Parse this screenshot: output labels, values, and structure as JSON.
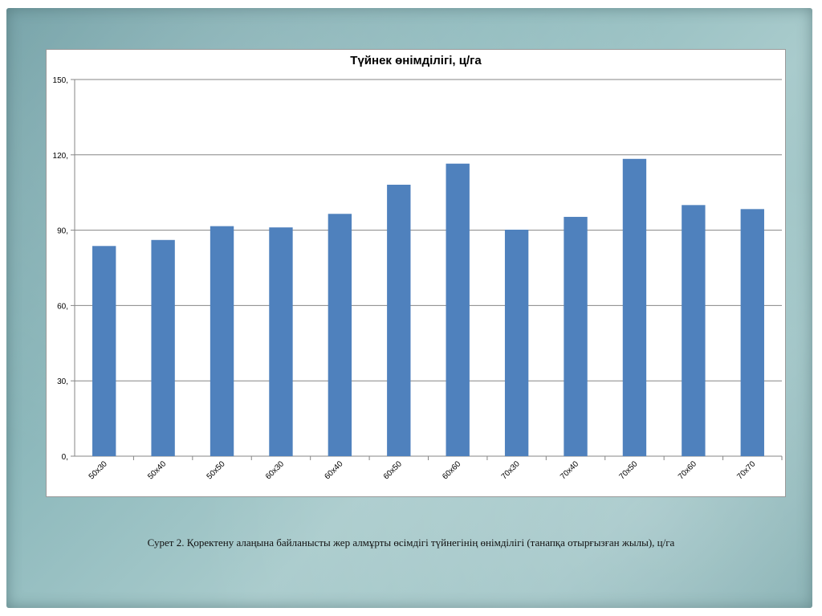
{
  "chart_data": {
    "type": "bar",
    "title": "Түйнек өнімділігі, ц/га",
    "categories": [
      "50x30",
      "50x40",
      "50x50",
      "60x30",
      "60x40",
      "60x50",
      "60x60",
      "70x30",
      "70x40",
      "70x50",
      "70x60",
      "70x70"
    ],
    "values": [
      83.7,
      86.1,
      91.6,
      91.1,
      96.5,
      108.1,
      116.5,
      90.2,
      95.3,
      118.4,
      100.0,
      98.4
    ],
    "ylim": [
      0,
      150
    ],
    "yticks": [
      "0,",
      "30,",
      "60,",
      "90,",
      "120,",
      "150,"
    ],
    "ytick_values": [
      0,
      30,
      60,
      90,
      120,
      150
    ],
    "grid": true,
    "bar_color": "#4f81bd",
    "xlabel": "",
    "ylabel": ""
  },
  "caption": "Сурет 2. Қоректену алаңына байланысты жер алмұрты өсімдігі түйнегінің өнімділігі (танапқа отырғызған жылы), ц/га",
  "colors": {
    "frame": "#8fbabd",
    "gridline": "#868686",
    "panel": "#ffffff"
  }
}
